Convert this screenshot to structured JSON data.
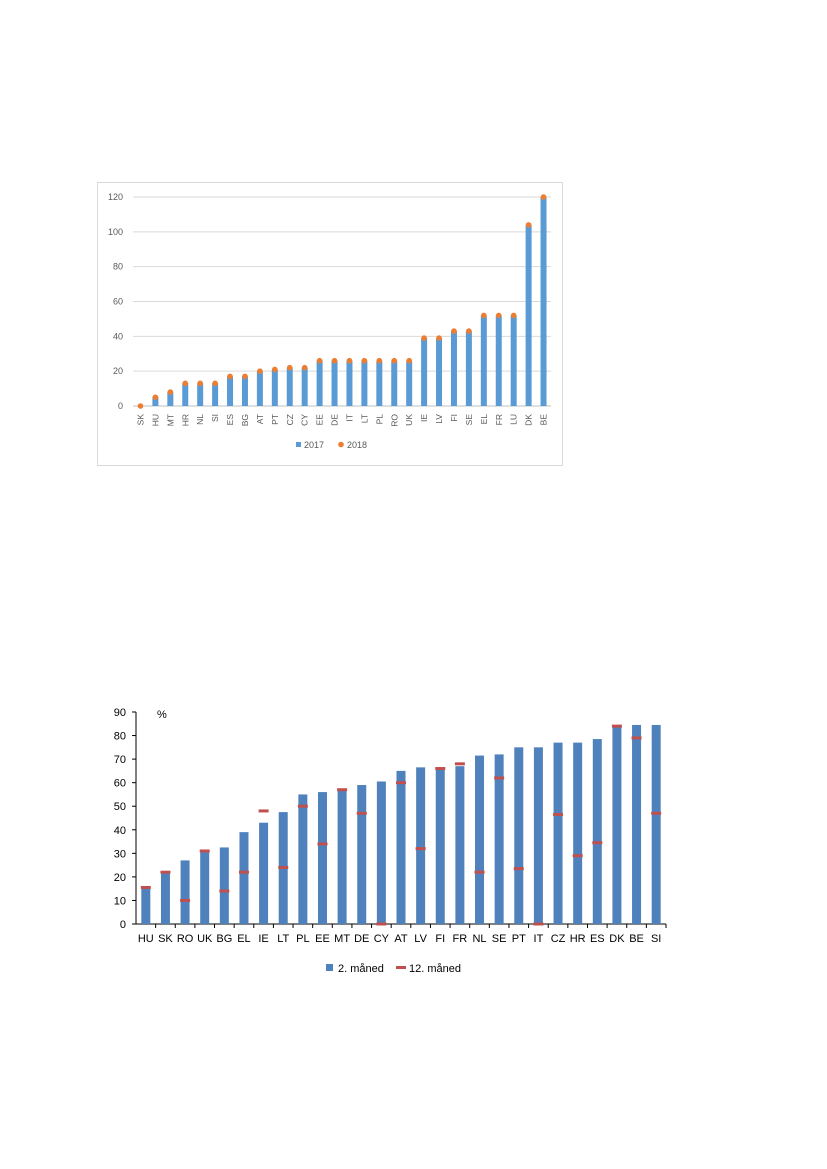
{
  "chart_data": [
    {
      "type": "bar",
      "title": "",
      "xlabel": "",
      "ylabel": "",
      "ylim": [
        0,
        120
      ],
      "yticks": [
        0,
        20,
        40,
        60,
        80,
        100,
        120
      ],
      "grid": true,
      "legend_position": "bottom",
      "categories": [
        "SK",
        "HU",
        "MT",
        "HR",
        "NL",
        "SI",
        "ES",
        "BG",
        "AT",
        "PT",
        "CZ",
        "CY",
        "EE",
        "DE",
        "IT",
        "LT",
        "PL",
        "RO",
        "UK",
        "IE",
        "LV",
        "FI",
        "SE",
        "EL",
        "FR",
        "LU",
        "DK",
        "BE"
      ],
      "series": [
        {
          "name": "2017",
          "kind": "bar",
          "color": "#5b9bd5",
          "values": [
            0,
            5,
            8,
            13,
            13,
            13,
            17,
            17,
            20,
            21,
            22,
            22,
            26,
            26,
            26,
            26,
            26,
            26,
            26,
            39,
            39,
            43,
            43,
            52,
            52,
            52,
            104,
            120
          ]
        },
        {
          "name": "2018",
          "kind": "marker",
          "color": "#ed7d31",
          "values": [
            0,
            5,
            8,
            13,
            13,
            13,
            17,
            17,
            20,
            21,
            22,
            22,
            26,
            26,
            26,
            26,
            26,
            26,
            26,
            39,
            39,
            43,
            43,
            52,
            52,
            52,
            104,
            120
          ]
        }
      ]
    },
    {
      "type": "bar",
      "title": "",
      "xlabel": "",
      "ylabel": "%",
      "ylim": [
        0,
        90
      ],
      "yticks": [
        0,
        10,
        20,
        30,
        40,
        50,
        60,
        70,
        80,
        90
      ],
      "grid": false,
      "legend_position": "bottom",
      "categories": [
        "HU",
        "SK",
        "RO",
        "UK",
        "BG",
        "EL",
        "IE",
        "LT",
        "PL",
        "EE",
        "MT",
        "DE",
        "CY",
        "AT",
        "LV",
        "FI",
        "FR",
        "NL",
        "SE",
        "PT",
        "IT",
        "CZ",
        "HR",
        "ES",
        "DK",
        "BE",
        "SI"
      ],
      "series": [
        {
          "name": "2. måned",
          "kind": "bar",
          "color": "#4f81bd",
          "values": [
            15.5,
            22,
            27,
            31,
            32.5,
            39,
            43,
            47.5,
            55,
            56,
            57,
            59,
            60.5,
            65,
            66.5,
            66.5,
            67,
            71.5,
            72,
            75,
            75,
            77,
            77,
            78.5,
            84,
            84.5,
            84.5
          ]
        },
        {
          "name": "12. måned",
          "kind": "marker",
          "color": "#c0504d",
          "values": [
            15.5,
            22,
            10,
            31,
            14,
            22,
            48,
            24,
            50,
            34,
            57,
            47,
            0,
            60,
            32,
            66,
            68,
            22,
            62,
            23.5,
            0,
            46.5,
            29,
            34.5,
            84,
            79,
            47
          ]
        }
      ]
    }
  ]
}
